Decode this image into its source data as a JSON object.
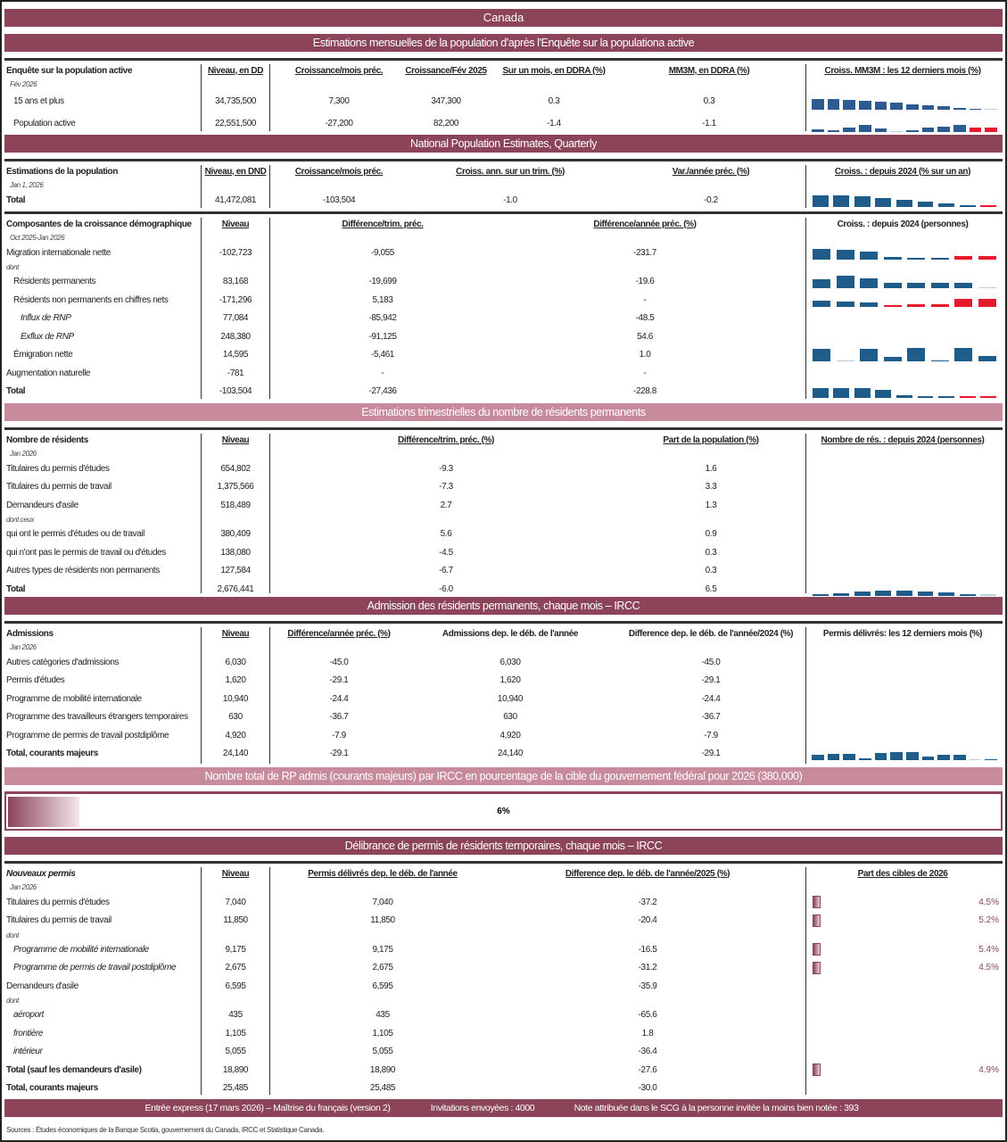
{
  "title": "Canada",
  "colors": {
    "header_dark": "#8B4458",
    "header_pink": "#C88B9B",
    "bar_blue": "#1F5C8A",
    "bar_blue_alt": "#2E5B8F",
    "bar_negative": "#E8192C"
  },
  "blocks": [
    {
      "type": "header",
      "style": "dark",
      "text": "Estimations mensuelles de la population d'après l'Enquête sur la populationa active"
    },
    {
      "type": "table",
      "columns": [
        "Enquête sur la population active",
        "Niveau, en DD",
        "Croissance/mois préc.",
        "Croissance/Fév 2025",
        "Sur un mois, en DDRA (%)",
        "MM3M, en DDRA (%)"
      ],
      "spark_title": "Croiss. MM3M : les 12 derniers mois (%)",
      "subtitle": "Fév 2026",
      "rows": [
        {
          "label": "15 ans et plus",
          "indent": 1,
          "values": [
            "34,735,500",
            "7,300",
            "347,300",
            "0.3",
            "0.3"
          ],
          "spark": [
            12,
            12,
            11,
            10,
            9,
            8,
            6,
            5,
            4,
            2,
            1,
            0.3
          ]
        },
        {
          "label": "Population active",
          "indent": 1,
          "values": [
            "22,551,500",
            "-27,200",
            "82,200",
            "-1.4",
            "-1.1"
          ],
          "spark": [
            3,
            2,
            5,
            8,
            4,
            0.3,
            2,
            5,
            6,
            8,
            -5,
            -5
          ]
        }
      ]
    },
    {
      "type": "header",
      "style": "dark",
      "text": "National Population Estimates, Quarterly"
    },
    {
      "type": "table",
      "columns": [
        "Estimations de la population",
        "Niveau, en DND",
        "Croissance/mois préc.",
        "Croiss. ann. sur un trim. (%)",
        "Var./année préc. (%)"
      ],
      "spark_title": "Croiss. : depuis 2024 (% sur un an)",
      "subtitle": "Jan 1, 2026",
      "rows": [
        {
          "label": "Total",
          "bold": true,
          "values": [
            "41,472,081",
            "-103,504",
            "-1.0",
            "-0.2"
          ],
          "spark": [
            13,
            13,
            12,
            10,
            8,
            6,
            4,
            1,
            -1
          ]
        }
      ]
    },
    {
      "type": "table",
      "columns": [
        "Composantes de la croissance démographique",
        "Niveau",
        "Différence/trim. préc.",
        "Différence/année préc. (%)"
      ],
      "spark_title": "Croiss. : depuis 2024 (personnes)",
      "spark_title_plain": true,
      "subtitle": "Oct 2025-Jan 2026",
      "rows": [
        {
          "label": "Migration internationale nette",
          "values": [
            "-102,723",
            "-9,055",
            "-231.7"
          ],
          "spark": [
            12,
            11,
            9,
            3,
            1,
            1,
            -4,
            -4
          ]
        },
        {
          "note": "dont"
        },
        {
          "label": "Résidents permanents",
          "indent": 1,
          "values": [
            "83,168",
            "-19,699",
            "-19.6"
          ],
          "spark": [
            10,
            14,
            11,
            6,
            6,
            6,
            6,
            0.3
          ]
        },
        {
          "label": "Résidents non permanents en chiffres nets",
          "indent": 1,
          "values": [
            "-171,296",
            "5,183",
            "-"
          ],
          "spark": [
            7,
            6,
            5,
            -1,
            -3,
            -3,
            -9,
            -9
          ]
        },
        {
          "label": "Influx de RNP",
          "indent": 2,
          "italic": true,
          "values": [
            "77,084",
            "-85,942",
            "-48.5"
          ]
        },
        {
          "label": "Exflux de RNP",
          "indent": 2,
          "italic": true,
          "values": [
            "248,380",
            "-91,125",
            "54.6"
          ]
        },
        {
          "label": "Émigration nette",
          "indent": 1,
          "values": [
            "14,595",
            "-5,461",
            "1.0"
          ],
          "spark": [
            14,
            0.3,
            14,
            5,
            15,
            1,
            15,
            6
          ]
        },
        {
          "label": "Augmentation naturelle",
          "values": [
            "-781",
            "-",
            "-"
          ]
        },
        {
          "label": "Total",
          "bold": true,
          "values": [
            "-103,504",
            "-27,436",
            "-228.8"
          ],
          "spark": [
            11,
            11,
            11,
            9,
            3,
            2,
            2,
            -2,
            -2
          ]
        }
      ]
    },
    {
      "type": "header",
      "style": "pink",
      "text": "Estimations trimestrielles du nombre de résidents permanents"
    },
    {
      "type": "table",
      "columns": [
        "Nombre de résidents",
        "Niveau",
        "Différence/trim. préc. (%)",
        "Part de la population (%)"
      ],
      "spark_title": "Nombre de rés. : depuis 2024 (personnes)",
      "subtitle": "Jan 2026",
      "rows": [
        {
          "label": "Titulaires du permis d'études",
          "values": [
            "654,802",
            "-9.3",
            "1.6"
          ]
        },
        {
          "label": "Titulaires du permis de travail",
          "values": [
            "1,375,566",
            "-7.3",
            "3.3"
          ]
        },
        {
          "label": "Demandeurs d'asile",
          "values": [
            "518,489",
            "2.7",
            "1.3"
          ]
        },
        {
          "note": "dont ceux"
        },
        {
          "label": "qui ont le permis d'études ou de travail",
          "values": [
            "380,409",
            "5.6",
            "0.9"
          ]
        },
        {
          "label": "qui n'ont pas le permis de travail ou d'études",
          "values": [
            "138,080",
            "-4.5",
            "0.3"
          ]
        },
        {
          "label": "Autres types de résidents non permanents",
          "values": [
            "127,584",
            "-6.7",
            "0.3"
          ]
        },
        {
          "label": "Total",
          "bold": true,
          "values": [
            "2,676,441",
            "-6.0",
            "6.5"
          ],
          "spark": [
            1,
            3,
            5,
            6,
            6,
            5,
            4,
            2,
            0.3
          ]
        }
      ]
    },
    {
      "type": "header",
      "style": "dark",
      "text": "Admission des résidents permanents, chaque mois – IRCC"
    },
    {
      "type": "table",
      "columns": [
        "Admissions",
        "Niveau",
        "Différence/année préc. (%)",
        "Admissions dep. le déb. de l'année",
        "Difference dep. le déb. de l'année/2024 (%)"
      ],
      "plain_cols": [
        3,
        4
      ],
      "spark_title": "Permis délivrés: les 12 derniers mois (%)",
      "spark_title_plain": true,
      "subtitle": "Jan 2026",
      "rows": [
        {
          "label": "Autres catégories d'admissions",
          "values": [
            "6,030",
            "-45.0",
            "6,030",
            "-45.0"
          ]
        },
        {
          "label": "Permis d'études",
          "values": [
            "1,620",
            "-29.1",
            "1,620",
            "-29.1"
          ]
        },
        {
          "label": "Programme de mobilité internationale",
          "values": [
            "10,940",
            "-24.4",
            "10,940",
            "-24.4"
          ]
        },
        {
          "label": "Programme des travailleurs étrangers temporaires",
          "values": [
            "630",
            "-36.7",
            "630",
            "-36.7"
          ]
        },
        {
          "label": "Programme de permis de travail postdiplôme",
          "values": [
            "4,920",
            "-7.9",
            "4,920",
            "-7.9"
          ]
        },
        {
          "label": "Total, courants majeurs",
          "bold": true,
          "values": [
            "24,140",
            "-29.1",
            "24,140",
            "-29.1"
          ],
          "spark": [
            6,
            7,
            7,
            2,
            8,
            9,
            9,
            4,
            6,
            6,
            0.3,
            1
          ]
        }
      ]
    },
    {
      "type": "header",
      "style": "pink",
      "text": "Nombre total de RP admis (courants majeurs) par IRCC en pourcentage de la cible du gouvernement fédéral pour 2026 (380,000)"
    },
    {
      "type": "progress",
      "percent": 6,
      "label": "6%"
    },
    {
      "type": "header",
      "style": "dark",
      "text": "Délibrance de permis de résidents temporaires, chaque mois – IRCC"
    },
    {
      "type": "table",
      "columns": [
        "Nouveaux permis",
        "Niveau",
        "Permis délivrés dep. le déb. de l'année",
        "Difference dep. le déb. de l'année/2025 (%)"
      ],
      "first_italic": true,
      "spark_title": "Part des cibles de 2026",
      "subtitle": "Jan 2026",
      "rows": [
        {
          "label": "Titulaires du permis d'études",
          "values": [
            "7,040",
            "7,040",
            "-37.2"
          ],
          "share": "4.5%"
        },
        {
          "label": "Titulaires du permis de travail",
          "values": [
            "11,850",
            "11,850",
            "-20.4"
          ],
          "share": "5.2%"
        },
        {
          "note": "dont"
        },
        {
          "label": "Programme de mobilité internationale",
          "indent": 1,
          "italic": true,
          "values": [
            "9,175",
            "9,175",
            "-16.5"
          ],
          "share": "5.4%"
        },
        {
          "label": "Programme de permis de travail postdiplôme",
          "indent": 1,
          "italic": true,
          "values": [
            "2,675",
            "2,675",
            "-31.2"
          ],
          "share": "4.5%"
        },
        {
          "label": "Demandeurs d'asile",
          "values": [
            "6,595",
            "6,595",
            "-35.9"
          ]
        },
        {
          "note": "dont"
        },
        {
          "label": "aéroport",
          "indent": 1,
          "italic": true,
          "values": [
            "435",
            "435",
            "-65.6"
          ]
        },
        {
          "label": "frontière",
          "indent": 1,
          "italic": true,
          "values": [
            "1,105",
            "1,105",
            "1.8"
          ]
        },
        {
          "label": "intérieur",
          "indent": 1,
          "italic": true,
          "values": [
            "5,055",
            "5,055",
            "-36.4"
          ]
        },
        {
          "label": "Total (sauf les demandeurs d'asile)",
          "bold": true,
          "values": [
            "18,890",
            "18,890",
            "-27.6"
          ],
          "share": "4.9%"
        },
        {
          "label": "Total, courants majeurs",
          "bold": true,
          "values": [
            "25,485",
            "25,485",
            "-30.0"
          ]
        }
      ]
    },
    {
      "type": "footer",
      "items": [
        "Entrée express (17 mars 2026) – Maîtrise du français (version 2)",
        "Invitations envoyées : 4000",
        "Note attribuée dans le SCG à la personne invitée la moins bien notée : 393"
      ]
    }
  ],
  "sources": "Sources : Études économiques de la Banque Scotia, gouvernement du Canada, IRCC et Statistique Canada."
}
